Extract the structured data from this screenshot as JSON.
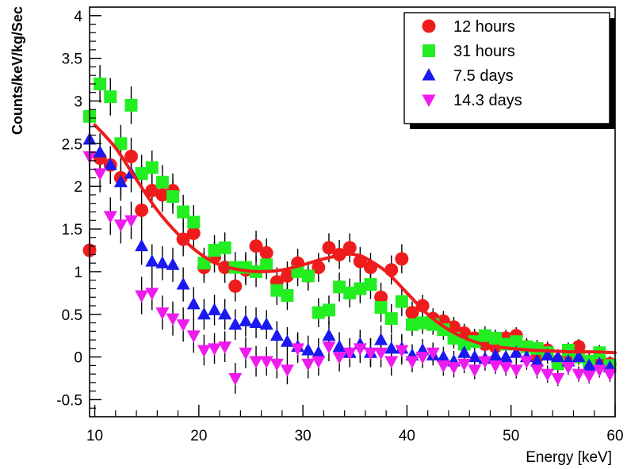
{
  "chart_data": {
    "type": "scatter",
    "title": "",
    "xlabel": "Energy [keV]",
    "ylabel": "Counts/keV/kg/Sec",
    "xlim": [
      9.5,
      60
    ],
    "ylim": [
      -0.7,
      4.1
    ],
    "x_ticks": [
      10,
      20,
      30,
      40,
      50,
      60
    ],
    "y_ticks": [
      -0.5,
      0,
      0.5,
      1,
      1.5,
      2,
      2.5,
      3,
      3.5,
      4
    ],
    "grid": false,
    "legend_position": "top-right",
    "series": [
      {
        "name": "12 hours",
        "marker": "circle",
        "color": "#ee1c1c",
        "x": [
          9.5,
          10.5,
          11.5,
          12.5,
          13.5,
          14.5,
          15.5,
          16.5,
          17.5,
          18.5,
          19.5,
          20.5,
          21.5,
          22.5,
          23.5,
          24.5,
          25.5,
          26.5,
          27.5,
          28.5,
          29.5,
          30.5,
          31.5,
          32.5,
          33.5,
          34.5,
          35.5,
          36.5,
          37.5,
          38.5,
          39.5,
          40.5,
          41.5,
          42.5,
          43.5,
          44.5,
          45.5,
          46.5,
          47.5,
          48.5,
          49.5,
          50.5,
          51.5,
          52.5,
          53.5,
          54.5,
          55.5,
          56.5,
          57.5,
          58.5,
          59.5
        ],
        "y": [
          1.25,
          2.33,
          2.25,
          2.1,
          2.35,
          1.72,
          1.95,
          1.9,
          1.95,
          1.38,
          1.45,
          1.05,
          1.17,
          1.05,
          0.83,
          1.02,
          1.3,
          1.22,
          0.88,
          0.95,
          1.1,
          0.95,
          1.05,
          1.28,
          1.2,
          1.28,
          1.12,
          1.05,
          0.7,
          1.02,
          1.15,
          0.52,
          0.6,
          0.45,
          0.42,
          0.35,
          0.28,
          0.22,
          0.15,
          0.12,
          0.22,
          0.25,
          0.12,
          0.0,
          0.08,
          -0.05,
          0.0,
          0.12,
          -0.05,
          -0.02,
          -0.08
        ],
        "errors": [
          0.22,
          0.22,
          0.22,
          0.22,
          0.22,
          0.22,
          0.2,
          0.2,
          0.2,
          0.2,
          0.2,
          0.18,
          0.18,
          0.18,
          0.18,
          0.18,
          0.18,
          0.17,
          0.17,
          0.17,
          0.17,
          0.17,
          0.17,
          0.17,
          0.17,
          0.17,
          0.17,
          0.17,
          0.17,
          0.17,
          0.17,
          0.13,
          0.13,
          0.12,
          0.12,
          0.12,
          0.11,
          0.11,
          0.11,
          0.1,
          0.1,
          0.1,
          0.1,
          0.1,
          0.1,
          0.09,
          0.09,
          0.09,
          0.09,
          0.09,
          0.09
        ]
      },
      {
        "name": "31 hours",
        "marker": "square",
        "color": "#22ee22",
        "x": [
          9.5,
          10.5,
          11.5,
          12.5,
          13.5,
          14.5,
          15.5,
          16.5,
          17.5,
          18.5,
          19.5,
          20.5,
          21.5,
          22.5,
          23.5,
          24.5,
          25.5,
          26.5,
          27.5,
          28.5,
          29.5,
          30.5,
          31.5,
          32.5,
          33.5,
          34.5,
          35.5,
          36.5,
          37.5,
          38.5,
          39.5,
          40.5,
          41.5,
          42.5,
          43.5,
          44.5,
          45.5,
          46.5,
          47.5,
          48.5,
          49.5,
          50.5,
          51.5,
          52.5,
          53.5,
          54.5,
          55.5,
          56.5,
          57.5,
          58.5,
          59.5
        ],
        "y": [
          2.82,
          3.2,
          3.05,
          2.5,
          2.95,
          2.15,
          2.22,
          2.05,
          1.88,
          1.7,
          1.58,
          1.1,
          1.25,
          1.28,
          1.05,
          1.05,
          1.0,
          1.08,
          0.78,
          0.72,
          1.0,
          0.95,
          0.52,
          0.55,
          0.82,
          0.75,
          0.8,
          0.85,
          0.58,
          0.45,
          0.65,
          0.38,
          0.4,
          0.38,
          0.32,
          0.22,
          0.15,
          0.18,
          0.25,
          0.22,
          0.15,
          0.18,
          0.12,
          0.1,
          0.05,
          -0.08,
          0.08,
          0.0,
          -0.05,
          0.05,
          -0.1
        ],
        "errors": [
          0.22,
          0.22,
          0.22,
          0.22,
          0.22,
          0.22,
          0.2,
          0.2,
          0.2,
          0.2,
          0.2,
          0.18,
          0.18,
          0.18,
          0.18,
          0.18,
          0.18,
          0.17,
          0.17,
          0.17,
          0.17,
          0.17,
          0.17,
          0.17,
          0.17,
          0.17,
          0.17,
          0.17,
          0.17,
          0.17,
          0.17,
          0.13,
          0.13,
          0.12,
          0.12,
          0.12,
          0.11,
          0.11,
          0.11,
          0.1,
          0.1,
          0.1,
          0.1,
          0.1,
          0.1,
          0.09,
          0.09,
          0.09,
          0.09,
          0.09,
          0.09
        ]
      },
      {
        "name": "7.5 days",
        "marker": "triangle-up",
        "color": "#1a1aee",
        "x": [
          9.5,
          10.5,
          11.5,
          12.5,
          13.5,
          14.5,
          15.5,
          16.5,
          17.5,
          18.5,
          19.5,
          20.5,
          21.5,
          22.5,
          23.5,
          24.5,
          25.5,
          26.5,
          27.5,
          28.5,
          29.5,
          30.5,
          31.5,
          32.5,
          33.5,
          34.5,
          35.5,
          36.5,
          37.5,
          38.5,
          39.5,
          40.5,
          41.5,
          42.5,
          43.5,
          44.5,
          45.5,
          46.5,
          47.5,
          48.5,
          49.5,
          50.5,
          51.5,
          52.5,
          53.5,
          54.5,
          55.5,
          56.5,
          57.5,
          58.5,
          59.5
        ],
        "y": [
          2.55,
          2.4,
          2.25,
          2.05,
          2.15,
          1.3,
          1.12,
          1.1,
          1.08,
          0.85,
          0.62,
          0.5,
          0.55,
          0.5,
          0.38,
          0.42,
          0.4,
          0.38,
          0.25,
          0.18,
          0.12,
          0.08,
          0.05,
          0.25,
          0.12,
          0.05,
          0.15,
          0.05,
          0.2,
          0.1,
          0.1,
          0.02,
          0.08,
          0.02,
          0.0,
          -0.05,
          0.05,
          0.0,
          -0.02,
          0.02,
          0.0,
          0.05,
          0.0,
          -0.05,
          0.02,
          0.0,
          -0.05,
          0.0,
          -0.1,
          -0.08,
          -0.12
        ],
        "errors": [
          0.22,
          0.22,
          0.22,
          0.22,
          0.22,
          0.22,
          0.2,
          0.2,
          0.2,
          0.2,
          0.2,
          0.18,
          0.18,
          0.18,
          0.18,
          0.18,
          0.18,
          0.17,
          0.17,
          0.17,
          0.17,
          0.17,
          0.17,
          0.17,
          0.17,
          0.17,
          0.17,
          0.17,
          0.17,
          0.17,
          0.17,
          0.13,
          0.13,
          0.12,
          0.12,
          0.12,
          0.11,
          0.11,
          0.11,
          0.1,
          0.1,
          0.1,
          0.1,
          0.1,
          0.1,
          0.09,
          0.09,
          0.09,
          0.09,
          0.09,
          0.09
        ]
      },
      {
        "name": "14.3 days",
        "marker": "triangle-down",
        "color": "#ee1aee",
        "x": [
          9.5,
          10.5,
          11.5,
          12.5,
          13.5,
          14.5,
          15.5,
          16.5,
          17.5,
          18.5,
          19.5,
          20.5,
          21.5,
          22.5,
          23.5,
          24.5,
          25.5,
          26.5,
          27.5,
          28.5,
          29.5,
          30.5,
          31.5,
          32.5,
          33.5,
          34.5,
          35.5,
          36.5,
          37.5,
          38.5,
          39.5,
          40.5,
          41.5,
          42.5,
          43.5,
          44.5,
          45.5,
          46.5,
          47.5,
          48.5,
          49.5,
          50.5,
          51.5,
          52.5,
          53.5,
          54.5,
          55.5,
          56.5,
          57.5,
          58.5,
          59.5
        ],
        "y": [
          2.35,
          2.15,
          1.65,
          1.55,
          1.6,
          0.72,
          0.75,
          0.52,
          0.45,
          0.38,
          0.25,
          0.08,
          0.1,
          0.12,
          -0.25,
          0.05,
          -0.05,
          -0.05,
          -0.08,
          -0.15,
          0.1,
          -0.08,
          -0.05,
          0.12,
          0.0,
          0.05,
          0.1,
          0.05,
          0.05,
          -0.05,
          0.08,
          -0.05,
          0.0,
          0.05,
          -0.1,
          -0.12,
          -0.08,
          -0.15,
          -0.05,
          -0.1,
          -0.12,
          -0.15,
          -0.05,
          -0.15,
          -0.2,
          -0.25,
          -0.12,
          -0.2,
          -0.22,
          -0.15,
          -0.2
        ],
        "errors": [
          0.22,
          0.22,
          0.22,
          0.22,
          0.22,
          0.22,
          0.2,
          0.2,
          0.2,
          0.2,
          0.2,
          0.18,
          0.18,
          0.18,
          0.18,
          0.18,
          0.18,
          0.17,
          0.17,
          0.17,
          0.17,
          0.17,
          0.17,
          0.17,
          0.17,
          0.17,
          0.17,
          0.17,
          0.17,
          0.17,
          0.17,
          0.13,
          0.13,
          0.12,
          0.12,
          0.12,
          0.11,
          0.11,
          0.11,
          0.1,
          0.1,
          0.1,
          0.1,
          0.1,
          0.1,
          0.09,
          0.09,
          0.09,
          0.09,
          0.09,
          0.09
        ]
      }
    ],
    "fit_curve": {
      "color": "#ee1c1c",
      "x": [
        10,
        12,
        14,
        16,
        18,
        20,
        22,
        24,
        26,
        28,
        30,
        32,
        34,
        35,
        36,
        38,
        40,
        42,
        44,
        46,
        48,
        50,
        52,
        54,
        56,
        58,
        60
      ],
      "y": [
        2.72,
        2.45,
        2.08,
        1.72,
        1.44,
        1.22,
        1.08,
        1.02,
        1.0,
        1.02,
        1.08,
        1.15,
        1.2,
        1.2,
        1.16,
        1.0,
        0.75,
        0.5,
        0.32,
        0.2,
        0.13,
        0.1,
        0.08,
        0.07,
        0.06,
        0.06,
        0.05
      ]
    }
  }
}
